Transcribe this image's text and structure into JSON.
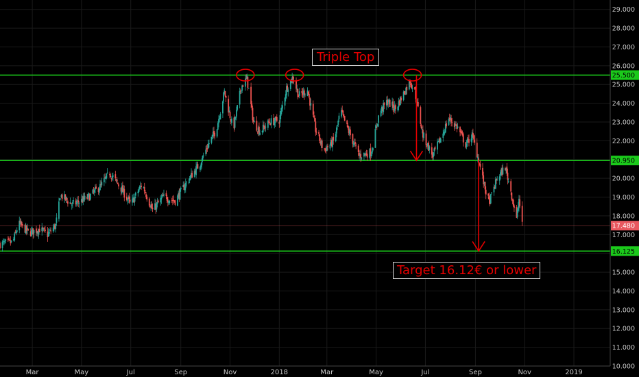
{
  "chart_data": {
    "type": "candlestick",
    "y_axis": {
      "position": "right",
      "range": [
        10,
        29.5
      ],
      "ticks": [
        "10.000",
        "11.000",
        "12.000",
        "13.000",
        "14.000",
        "15.000",
        "16.000",
        "17.000",
        "18.000",
        "19.000",
        "20.000",
        "21.000",
        "22.000",
        "23.000",
        "24.000",
        "25.000",
        "26.000",
        "27.000",
        "28.000",
        "29.000"
      ]
    },
    "x_axis": {
      "range": [
        "2017-01-20",
        "2019-02-15"
      ],
      "ticks": [
        {
          "label": "Mar",
          "date": "2017-03-01"
        },
        {
          "label": "May",
          "date": "2017-05-01"
        },
        {
          "label": "Jul",
          "date": "2017-07-01"
        },
        {
          "label": "Sep",
          "date": "2017-09-01"
        },
        {
          "label": "Nov",
          "date": "2017-11-01"
        },
        {
          "label": "2018",
          "date": "2018-01-01"
        },
        {
          "label": "Mar",
          "date": "2018-03-01"
        },
        {
          "label": "May",
          "date": "2018-05-01"
        },
        {
          "label": "Jul",
          "date": "2018-07-01"
        },
        {
          "label": "Sep",
          "date": "2018-09-01"
        },
        {
          "label": "Nov",
          "date": "2018-11-01"
        },
        {
          "label": "2019",
          "date": "2019-01-01"
        }
      ]
    },
    "price_path": [
      [
        "2017-01-20",
        16.5
      ],
      [
        "2017-02-05",
        16.6
      ],
      [
        "2017-02-12",
        17.6
      ],
      [
        "2017-02-25",
        17.1
      ],
      [
        "2017-03-10",
        17.3
      ],
      [
        "2017-03-20",
        17.0
      ],
      [
        "2017-03-30",
        17.5
      ],
      [
        "2017-04-05",
        19.1
      ],
      [
        "2017-04-20",
        18.6
      ],
      [
        "2017-05-10",
        19.0
      ],
      [
        "2017-05-25",
        19.6
      ],
      [
        "2017-06-05",
        20.3
      ],
      [
        "2017-06-20",
        19.4
      ],
      [
        "2017-07-01",
        18.6
      ],
      [
        "2017-07-15",
        19.7
      ],
      [
        "2017-07-28",
        18.3
      ],
      [
        "2017-08-10",
        19.0
      ],
      [
        "2017-08-25",
        18.8
      ],
      [
        "2017-09-10",
        19.9
      ],
      [
        "2017-09-25",
        20.8
      ],
      [
        "2017-10-05",
        21.8
      ],
      [
        "2017-10-15",
        22.6
      ],
      [
        "2017-10-25",
        24.6
      ],
      [
        "2017-11-05",
        22.6
      ],
      [
        "2017-11-15",
        24.9
      ],
      [
        "2017-11-22",
        25.3
      ],
      [
        "2017-11-30",
        23.0
      ],
      [
        "2017-12-08",
        22.5
      ],
      [
        "2017-12-20",
        23.0
      ],
      [
        "2018-01-01",
        23.1
      ],
      [
        "2018-01-10",
        24.8
      ],
      [
        "2018-01-18",
        25.4
      ],
      [
        "2018-01-25",
        24.4
      ],
      [
        "2018-02-05",
        24.7
      ],
      [
        "2018-02-15",
        22.6
      ],
      [
        "2018-02-25",
        21.5
      ],
      [
        "2018-03-10",
        22.0
      ],
      [
        "2018-03-18",
        23.6
      ],
      [
        "2018-03-28",
        22.5
      ],
      [
        "2018-04-10",
        21.2
      ],
      [
        "2018-04-25",
        21.4
      ],
      [
        "2018-05-05",
        23.5
      ],
      [
        "2018-05-15",
        24.1
      ],
      [
        "2018-05-25",
        23.7
      ],
      [
        "2018-06-05",
        24.6
      ],
      [
        "2018-06-12",
        25.2
      ],
      [
        "2018-06-18",
        24.6
      ],
      [
        "2018-06-28",
        22.3
      ],
      [
        "2018-07-10",
        21.2
      ],
      [
        "2018-07-20",
        22.1
      ],
      [
        "2018-07-30",
        23.2
      ],
      [
        "2018-08-10",
        22.7
      ],
      [
        "2018-08-20",
        21.8
      ],
      [
        "2018-08-28",
        22.3
      ],
      [
        "2018-09-05",
        21.0
      ],
      [
        "2018-09-12",
        19.6
      ],
      [
        "2018-09-18",
        18.7
      ],
      [
        "2018-09-28",
        20.0
      ],
      [
        "2018-10-08",
        20.6
      ],
      [
        "2018-10-15",
        19.3
      ],
      [
        "2018-10-22",
        17.8
      ],
      [
        "2018-10-25",
        18.9
      ],
      [
        "2018-10-29",
        17.48
      ]
    ],
    "horizontal_lines": [
      {
        "value": 25.5,
        "label": "25.500",
        "color": "#1bc91b"
      },
      {
        "value": 20.95,
        "label": "20.950",
        "color": "#1bc91b"
      },
      {
        "value": 16.125,
        "label": "16.125",
        "color": "#1bc91b"
      }
    ],
    "last_price": {
      "value": 17.48,
      "label": "17.480",
      "color": "#e8585f"
    },
    "circles": [
      {
        "date": "2017-11-20",
        "value": 25.5
      },
      {
        "date": "2018-01-20",
        "value": 25.5
      },
      {
        "date": "2018-06-15",
        "value": 25.5
      }
    ],
    "arrows": [
      {
        "date": "2018-06-20",
        "from": 25.5,
        "to": 20.95
      },
      {
        "date": "2018-09-05",
        "from": 20.95,
        "to": 16.125
      }
    ],
    "annotations": {
      "triple_top": "Triple Top",
      "target": "Target 16.12€ or lower"
    },
    "colors": {
      "up": "#26a69a",
      "down": "#ef5350",
      "level_line": "#1bc91b",
      "annotation": "#e60000",
      "background": "#000000",
      "grid": "#1a1a1a"
    }
  }
}
